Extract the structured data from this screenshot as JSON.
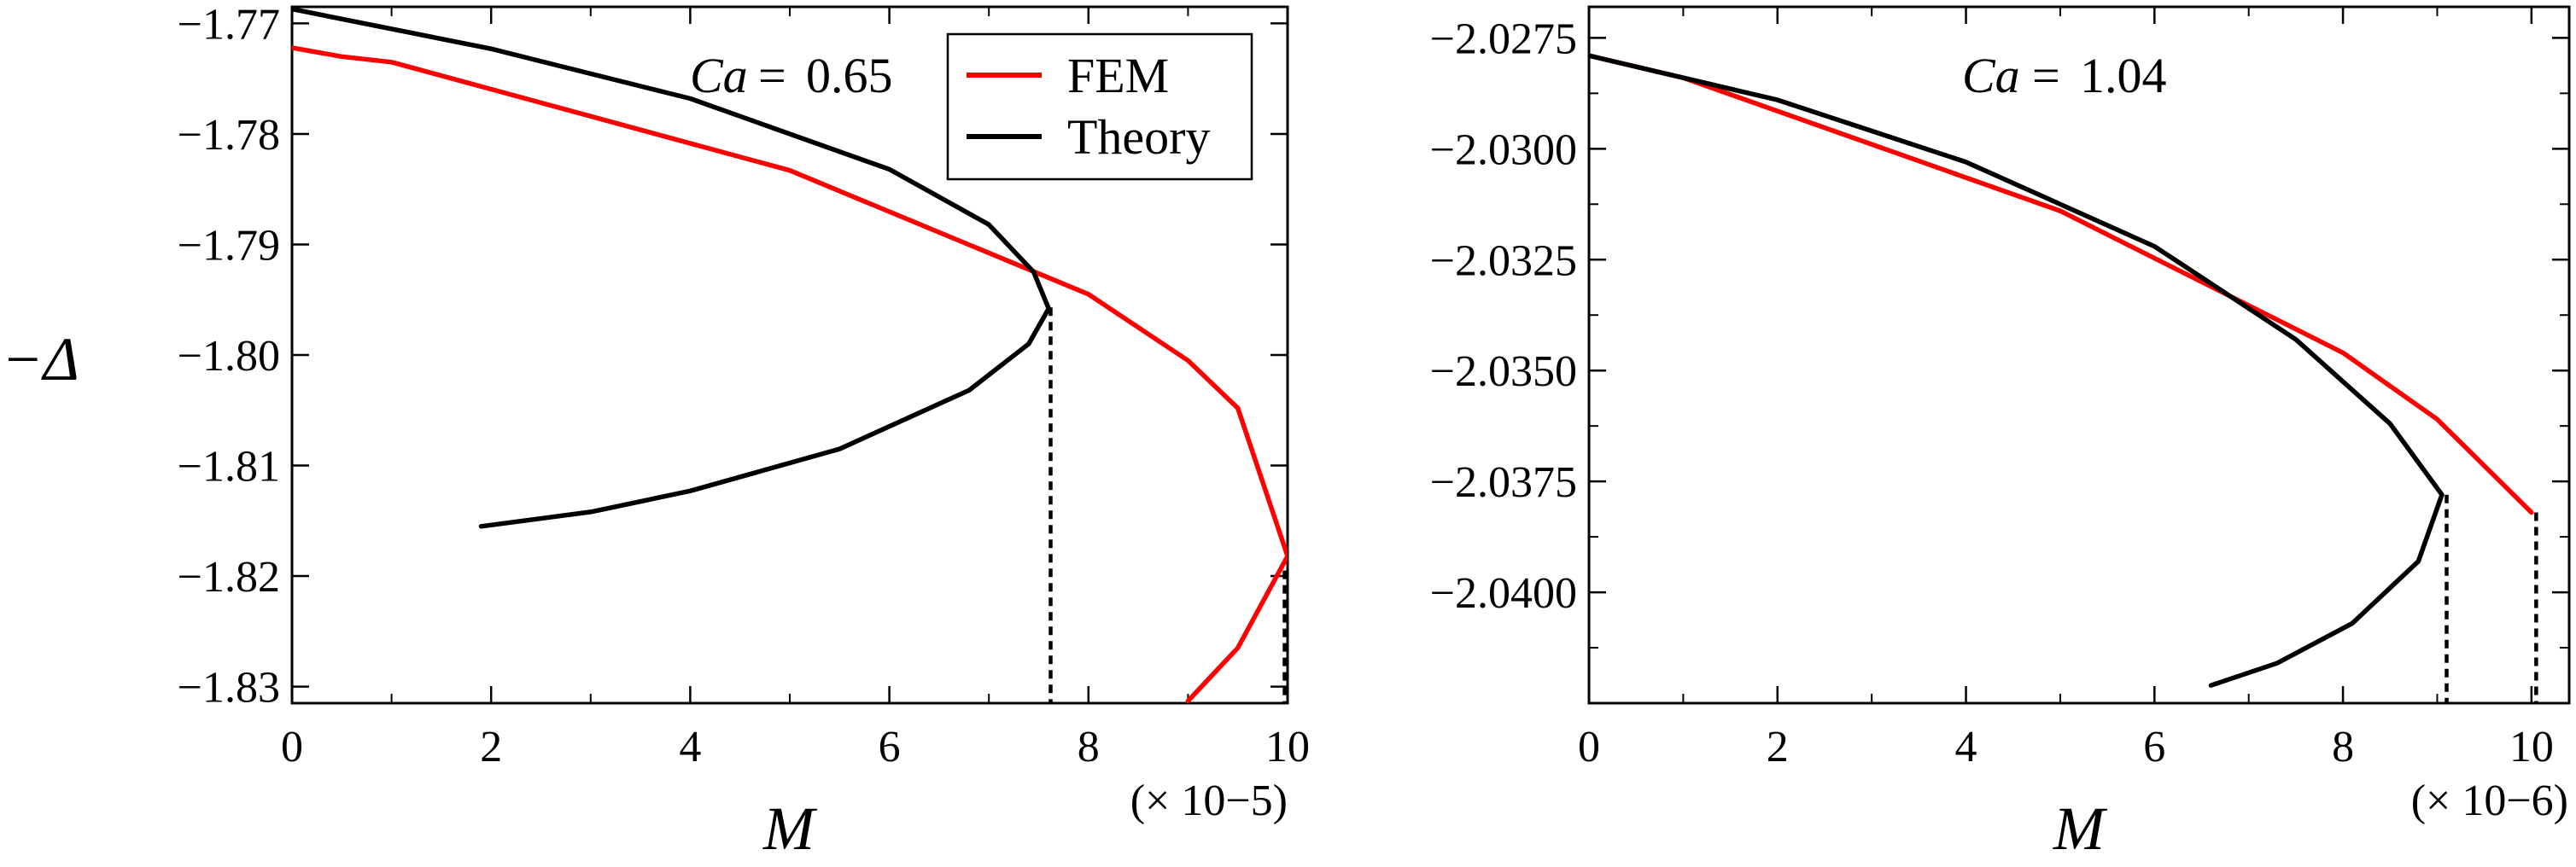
{
  "chart_data": [
    {
      "type": "line",
      "annotation": {
        "label": "Ca",
        "value": "0.65"
      },
      "xlabel": "M",
      "ylabel": "−Δ",
      "x_multiplier": "(× 10−5)",
      "xlim": [
        0,
        10
      ],
      "ylim": [
        -1.8315,
        -1.7685
      ],
      "xticks": [
        "0",
        "2",
        "4",
        "6",
        "8",
        "10"
      ],
      "yticks": [
        "−1.77",
        "−1.78",
        "−1.79",
        "−1.80",
        "−1.81",
        "−1.82",
        "−1.83"
      ],
      "ytick_values": [
        -1.77,
        -1.78,
        -1.79,
        -1.8,
        -1.81,
        -1.82,
        -1.83
      ],
      "legend": {
        "position": "top-right",
        "entries": [
          "FEM",
          "Theory"
        ]
      },
      "series": [
        {
          "name": "FEM",
          "color": "#ff0000",
          "x": [
            0,
            0.5,
            1,
            5,
            8,
            9,
            9.5,
            10,
            9.5,
            9
          ],
          "y": [
            -1.7722,
            -1.773,
            -1.7735,
            -1.7833,
            -1.7945,
            -1.8005,
            -1.8048,
            -1.8182,
            -1.8265,
            -1.8313
          ]
        },
        {
          "name": "Theory",
          "color": "#000000",
          "x": [
            0,
            2,
            4,
            6,
            7,
            7.45,
            7.6,
            7.4,
            6.8,
            5.5,
            4,
            3,
            1.9
          ],
          "y": [
            -1.7687,
            -1.7723,
            -1.7768,
            -1.7832,
            -1.7882,
            -1.7925,
            -1.7958,
            -1.799,
            -1.8032,
            -1.8085,
            -1.8123,
            -1.8142,
            -1.8155
          ]
        }
      ],
      "dashed_markers": [
        {
          "x": 7.62,
          "y_top": -1.7957
        },
        {
          "x": 9.97,
          "y_top": -1.8195
        }
      ]
    },
    {
      "type": "line",
      "annotation": {
        "label": "Ca",
        "value": "1.04"
      },
      "xlabel": "M",
      "ylabel": "",
      "x_multiplier": "(× 10−6)",
      "xlim": [
        0,
        10.4
      ],
      "ylim": [
        -2.0425,
        -2.0268
      ],
      "xticks": [
        "0",
        "2",
        "4",
        "6",
        "8",
        "10"
      ],
      "yticks": [
        "−2.0275",
        "−2.0300",
        "−2.0325",
        "−2.0350",
        "−2.0375",
        "−2.0400"
      ],
      "ytick_values": [
        -2.0275,
        -2.03,
        -2.0325,
        -2.035,
        -2.0375,
        -2.04
      ],
      "series": [
        {
          "name": "FEM",
          "color": "#ff0000",
          "x": [
            0,
            1,
            5,
            8,
            9,
            10
          ],
          "y": [
            -2.0279,
            -2.0284,
            -2.0314,
            -2.0346,
            -2.0361,
            -2.0382
          ]
        },
        {
          "name": "Theory",
          "color": "#000000",
          "x": [
            0,
            2,
            4,
            6,
            7.5,
            8.5,
            9.05,
            8.8,
            8.1,
            7.3,
            6.6
          ],
          "y": [
            -2.0279,
            -2.0289,
            -2.0303,
            -2.0322,
            -2.0343,
            -2.0362,
            -2.0378,
            -2.0393,
            -2.0407,
            -2.0416,
            -2.0421
          ]
        }
      ],
      "dashed_markers": [
        {
          "x": 9.1,
          "y_top": -2.0378
        },
        {
          "x": 10.05,
          "y_top": -2.0382
        }
      ]
    }
  ]
}
